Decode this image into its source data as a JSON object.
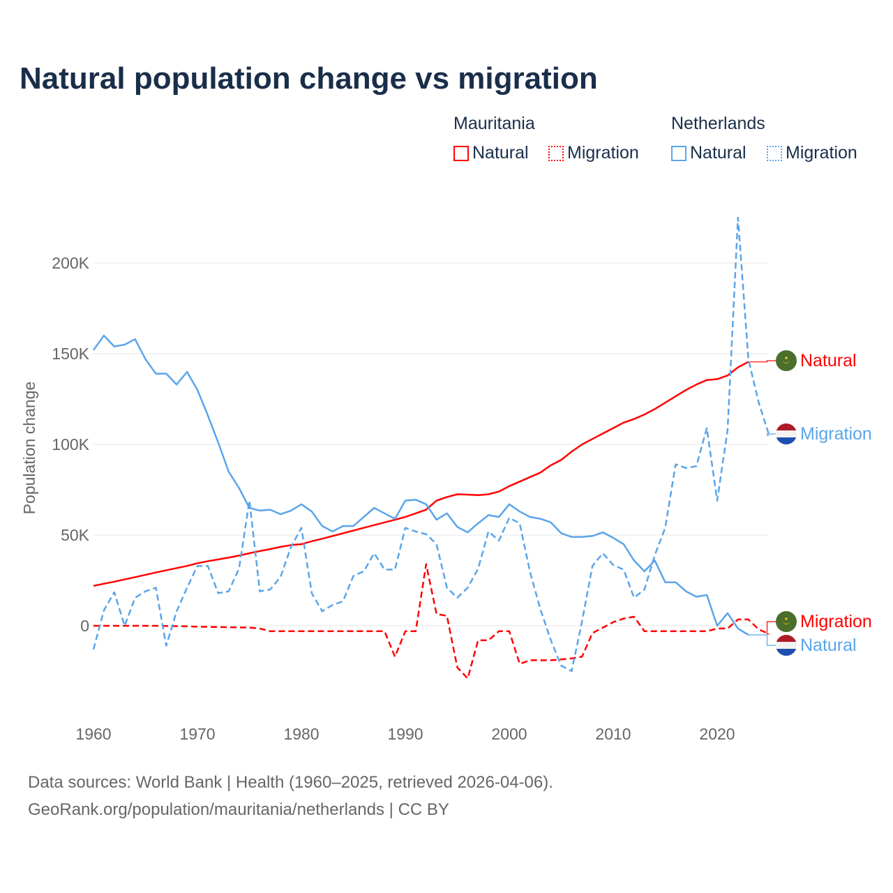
{
  "chart_data": {
    "type": "line",
    "title": "Natural population change vs migration",
    "xlabel": "",
    "ylabel": "Population change",
    "xlim": [
      1960,
      2025
    ],
    "ylim": [
      -45000,
      225000
    ],
    "x_ticks": [
      "1960",
      "1970",
      "1980",
      "1990",
      "2000",
      "2010",
      "2020"
    ],
    "y_ticks": [
      {
        "v": 0,
        "label": "0"
      },
      {
        "v": 50000,
        "label": "50K"
      },
      {
        "v": 100000,
        "label": "100K"
      },
      {
        "v": 150000,
        "label": "150K"
      },
      {
        "v": 200000,
        "label": "200K"
      }
    ],
    "grid": true,
    "legend": {
      "placement": "top-right",
      "groups": [
        {
          "country": "Mauritania",
          "items": [
            "Natural",
            "Migration"
          ]
        },
        {
          "country": "Netherlands",
          "items": [
            "Natural",
            "Migration"
          ]
        }
      ]
    },
    "series": [
      {
        "name": "Mauritania Natural",
        "country": "Mauritania",
        "kind": "Natural",
        "color": "#ff0000",
        "dash": false,
        "end_label": "Natural",
        "start_year": 1960,
        "values": [
          22000,
          23200,
          24300,
          25600,
          26800,
          28100,
          29400,
          30600,
          31800,
          33000,
          34500,
          35600,
          36600,
          37600,
          38700,
          40000,
          41200,
          42300,
          43500,
          44500,
          45000,
          46600,
          48000,
          49500,
          51000,
          52500,
          54000,
          55500,
          57000,
          58500,
          60000,
          62000,
          64000,
          69000,
          71000,
          72500,
          72300,
          72000,
          72500,
          74000,
          77000,
          79500,
          82000,
          84500,
          88500,
          91500,
          96000,
          100000,
          103000,
          106000,
          109000,
          112000,
          114000,
          116500,
          119500,
          123000,
          126500,
          130000,
          133000,
          135500,
          136000,
          138000,
          142500,
          145500
        ]
      },
      {
        "name": "Mauritania Migration",
        "country": "Mauritania",
        "kind": "Migration",
        "color": "#ff0000",
        "dash": true,
        "end_label": "Migration",
        "start_year": 1960,
        "values": [
          0,
          0,
          0,
          0,
          0,
          0,
          0,
          -100,
          -200,
          -300,
          -500,
          -600,
          -700,
          -800,
          -900,
          -1000,
          -1500,
          -3000,
          -3000,
          -3000,
          -3000,
          -3000,
          -3000,
          -3000,
          -3000,
          -3000,
          -3000,
          -3000,
          -3000,
          -17000,
          -3000,
          -3000,
          34000,
          6500,
          5500,
          -23000,
          -29000,
          -8000,
          -8000,
          -3000,
          -3000,
          -21000,
          -19000,
          -19000,
          -19000,
          -18500,
          -18000,
          -17000,
          -4000,
          -1000,
          2000,
          4000,
          5000,
          -3000,
          -3000,
          -3000,
          -3000,
          -3000,
          -3000,
          -3000,
          -1500,
          -1500,
          3500,
          3500,
          -2000,
          -4500
        ]
      },
      {
        "name": "Netherlands Natural",
        "country": "Netherlands",
        "kind": "Natural",
        "color": "#5aa5ea",
        "dash": false,
        "end_label": "Natural",
        "start_year": 1960,
        "values": [
          152000,
          160000,
          154000,
          155000,
          158000,
          147000,
          139000,
          139000,
          133000,
          140000,
          130000,
          116000,
          101000,
          85000,
          76000,
          65000,
          63500,
          64000,
          61500,
          63500,
          67000,
          63000,
          55000,
          52000,
          55000,
          55000,
          60000,
          65000,
          62000,
          59000,
          69000,
          69500,
          67000,
          58500,
          62000,
          54500,
          51500,
          56500,
          61000,
          60000,
          67000,
          63000,
          60000,
          59000,
          57000,
          51000,
          49000,
          49000,
          49500,
          51500,
          48500,
          45000,
          36000,
          30000,
          36000,
          24000,
          24000,
          19000,
          16000,
          17000,
          0,
          7000,
          -1500,
          -5000
        ]
      },
      {
        "name": "Netherlands Migration",
        "country": "Netherlands",
        "kind": "Migration",
        "color": "#5aa5ea",
        "dash": true,
        "end_label": "Migration",
        "start_year": 1960,
        "values": [
          -13000,
          8500,
          18500,
          0,
          15500,
          19000,
          21000,
          -11000,
          8000,
          21000,
          33000,
          33000,
          18000,
          19000,
          31500,
          69000,
          19000,
          20000,
          27000,
          43500,
          54000,
          18000,
          8000,
          11500,
          13500,
          27500,
          30000,
          40000,
          31000,
          31000,
          54000,
          52000,
          50500,
          45000,
          21000,
          15500,
          21000,
          31500,
          52000,
          47000,
          59500,
          56500,
          29500,
          9000,
          -8000,
          -22000,
          -25000,
          2500,
          33000,
          40000,
          33500,
          31000,
          15500,
          20000,
          39000,
          54000,
          89000,
          87000,
          88000,
          109000,
          69000,
          108000,
          225000,
          147000,
          123000,
          105000
        ]
      }
    ]
  },
  "legend_labels": {
    "mauritania": "Mauritania",
    "netherlands": "Netherlands",
    "natural": "Natural",
    "migration": "Migration"
  },
  "footer": {
    "line1": "Data sources: World Bank | Health (1960–2025, retrieved 2026-04-06).",
    "line2": "GeoRank.org/population/mauritania/netherlands | CC BY"
  }
}
